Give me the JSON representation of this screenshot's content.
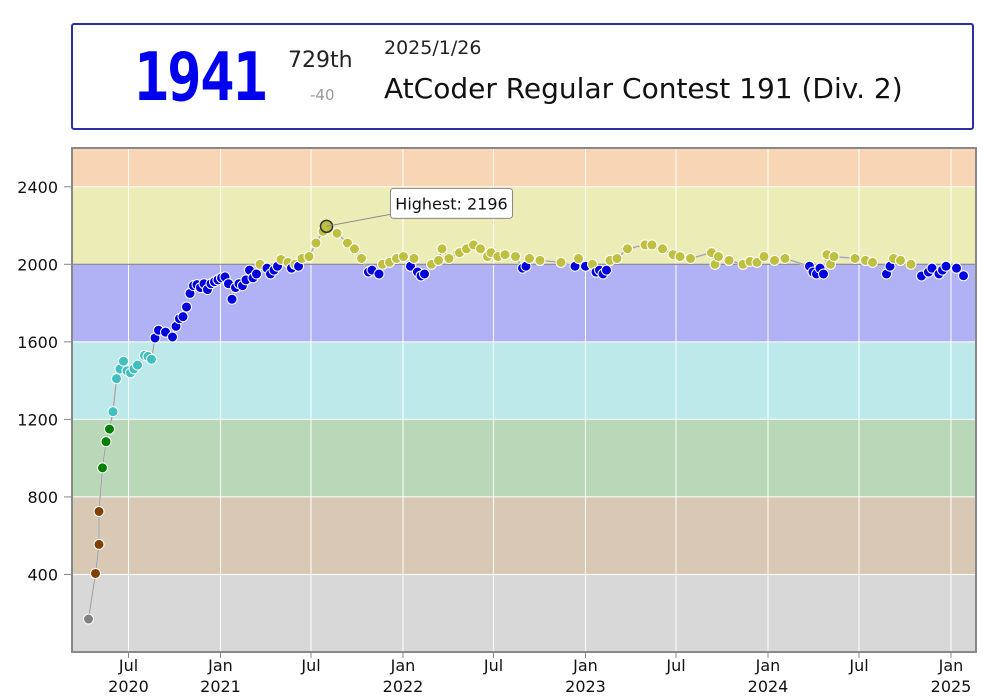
{
  "status": {
    "rating": "1941",
    "place": "729th",
    "delta": "-40",
    "date": "2025/1/26",
    "contest": "AtCoder Regular Contest 191 (Div. 2)"
  },
  "chart_data": {
    "type": "line",
    "ylim": [
      0,
      2600
    ],
    "yticks": [
      "400",
      "800",
      "1200",
      "1600",
      "2000",
      "2400"
    ],
    "xlabels": [
      {
        "date": "2020-07-01",
        "top": "Jul",
        "bottom": "2020"
      },
      {
        "date": "2021-01-01",
        "top": "Jan",
        "bottom": "2021"
      },
      {
        "date": "2021-07-01",
        "top": "Jul",
        "bottom": ""
      },
      {
        "date": "2022-01-01",
        "top": "Jan",
        "bottom": "2022"
      },
      {
        "date": "2022-07-01",
        "top": "Jul",
        "bottom": ""
      },
      {
        "date": "2023-01-01",
        "top": "Jan",
        "bottom": "2023"
      },
      {
        "date": "2023-07-01",
        "top": "Jul",
        "bottom": ""
      },
      {
        "date": "2024-01-01",
        "top": "Jan",
        "bottom": "2024"
      },
      {
        "date": "2024-07-01",
        "top": "Jul",
        "bottom": ""
      },
      {
        "date": "2025-01-01",
        "top": "Jan",
        "bottom": "2025"
      }
    ],
    "xrange": [
      "2020-03-10",
      "2025-02-20"
    ],
    "bands": [
      {
        "min": 0,
        "max": 400,
        "color": "#d8d8d8"
      },
      {
        "min": 400,
        "max": 800,
        "color": "#d8c8b4"
      },
      {
        "min": 800,
        "max": 1200,
        "color": "#b8d8b8"
      },
      {
        "min": 1200,
        "max": 1600,
        "color": "#bde9ea"
      },
      {
        "min": 1600,
        "max": 2000,
        "color": "#b1b1f5"
      },
      {
        "min": 2000,
        "max": 2400,
        "color": "#ececb7"
      },
      {
        "min": 2400,
        "max": 2800,
        "color": "#f8d6b5"
      }
    ],
    "rank_colors": [
      {
        "min": 0,
        "color": "#808080"
      },
      {
        "min": 400,
        "color": "#804000"
      },
      {
        "min": 800,
        "color": "#008000"
      },
      {
        "min": 1200,
        "color": "#3fbfbf"
      },
      {
        "min": 1600,
        "color": "#0000dd"
      },
      {
        "min": 2000,
        "color": "#c0c040"
      },
      {
        "min": 2400,
        "color": "#ff8000"
      }
    ],
    "highest": {
      "label": "Highest: 2196",
      "date": "2021-08-01",
      "value": 2196
    },
    "points": [
      [
        "2020-04-12",
        170
      ],
      [
        "2020-04-26",
        405
      ],
      [
        "2020-05-03",
        555
      ],
      [
        "2020-05-03",
        725
      ],
      [
        "2020-05-10",
        950
      ],
      [
        "2020-05-17",
        1085
      ],
      [
        "2020-05-24",
        1150
      ],
      [
        "2020-05-31",
        1240
      ],
      [
        "2020-06-07",
        1410
      ],
      [
        "2020-06-14",
        1460
      ],
      [
        "2020-06-21",
        1500
      ],
      [
        "2020-06-28",
        1450
      ],
      [
        "2020-07-05",
        1440
      ],
      [
        "2020-07-12",
        1460
      ],
      [
        "2020-07-19",
        1480
      ],
      [
        "2020-08-02",
        1530
      ],
      [
        "2020-08-09",
        1525
      ],
      [
        "2020-08-16",
        1510
      ],
      [
        "2020-08-23",
        1620
      ],
      [
        "2020-08-30",
        1660
      ],
      [
        "2020-09-13",
        1650
      ],
      [
        "2020-09-27",
        1625
      ],
      [
        "2020-10-04",
        1680
      ],
      [
        "2020-10-11",
        1720
      ],
      [
        "2020-10-18",
        1730
      ],
      [
        "2020-10-25",
        1780
      ],
      [
        "2020-11-01",
        1850
      ],
      [
        "2020-11-08",
        1890
      ],
      [
        "2020-11-15",
        1895
      ],
      [
        "2020-11-22",
        1880
      ],
      [
        "2020-11-29",
        1900
      ],
      [
        "2020-12-06",
        1870
      ],
      [
        "2020-12-13",
        1900
      ],
      [
        "2020-12-20",
        1910
      ],
      [
        "2020-12-27",
        1920
      ],
      [
        "2021-01-03",
        1930
      ],
      [
        "2021-01-10",
        1935
      ],
      [
        "2021-01-17",
        1900
      ],
      [
        "2021-01-24",
        1820
      ],
      [
        "2021-01-31",
        1880
      ],
      [
        "2021-02-07",
        1900
      ],
      [
        "2021-02-14",
        1890
      ],
      [
        "2021-02-21",
        1920
      ],
      [
        "2021-02-28",
        1970
      ],
      [
        "2021-03-07",
        1930
      ],
      [
        "2021-03-14",
        1950
      ],
      [
        "2021-03-21",
        2000
      ],
      [
        "2021-04-04",
        1980
      ],
      [
        "2021-04-11",
        1950
      ],
      [
        "2021-04-18",
        1970
      ],
      [
        "2021-04-25",
        1990
      ],
      [
        "2021-05-02",
        2025
      ],
      [
        "2021-05-16",
        2010
      ],
      [
        "2021-05-23",
        1980
      ],
      [
        "2021-05-30",
        2000
      ],
      [
        "2021-06-06",
        1990
      ],
      [
        "2021-06-13",
        2030
      ],
      [
        "2021-06-27",
        2040
      ],
      [
        "2021-07-11",
        2110
      ],
      [
        "2021-07-25",
        2170
      ],
      [
        "2021-08-01",
        2196
      ],
      [
        "2021-08-22",
        2160
      ],
      [
        "2021-09-12",
        2110
      ],
      [
        "2021-09-26",
        2080
      ],
      [
        "2021-10-10",
        2030
      ],
      [
        "2021-10-24",
        1960
      ],
      [
        "2021-10-31",
        1970
      ],
      [
        "2021-11-14",
        1950
      ],
      [
        "2021-11-21",
        2000
      ],
      [
        "2021-12-05",
        2010
      ],
      [
        "2021-12-19",
        2030
      ],
      [
        "2022-01-02",
        2040
      ],
      [
        "2022-01-16",
        1990
      ],
      [
        "2022-01-23",
        2030
      ],
      [
        "2022-01-30",
        1960
      ],
      [
        "2022-02-06",
        1940
      ],
      [
        "2022-02-13",
        1950
      ],
      [
        "2022-02-27",
        2000
      ],
      [
        "2022-03-13",
        2020
      ],
      [
        "2022-03-20",
        2080
      ],
      [
        "2022-04-03",
        2030
      ],
      [
        "2022-04-24",
        2060
      ],
      [
        "2022-05-08",
        2080
      ],
      [
        "2022-05-22",
        2100
      ],
      [
        "2022-06-05",
        2080
      ],
      [
        "2022-06-19",
        2040
      ],
      [
        "2022-06-26",
        2060
      ],
      [
        "2022-07-10",
        2040
      ],
      [
        "2022-07-24",
        2050
      ],
      [
        "2022-08-14",
        2040
      ],
      [
        "2022-08-28",
        1980
      ],
      [
        "2022-09-04",
        1990
      ],
      [
        "2022-09-11",
        2030
      ],
      [
        "2022-10-02",
        2020
      ],
      [
        "2022-11-13",
        2010
      ],
      [
        "2022-12-11",
        1990
      ],
      [
        "2022-12-18",
        2030
      ],
      [
        "2023-01-01",
        1990
      ],
      [
        "2023-01-15",
        2000
      ],
      [
        "2023-01-22",
        1960
      ],
      [
        "2023-01-29",
        1970
      ],
      [
        "2023-02-05",
        1950
      ],
      [
        "2023-02-12",
        1970
      ],
      [
        "2023-02-19",
        2020
      ],
      [
        "2023-03-05",
        2030
      ],
      [
        "2023-03-26",
        2080
      ],
      [
        "2023-04-30",
        2100
      ],
      [
        "2023-05-14",
        2100
      ],
      [
        "2023-06-04",
        2080
      ],
      [
        "2023-06-25",
        2050
      ],
      [
        "2023-07-09",
        2040
      ],
      [
        "2023-07-30",
        2030
      ],
      [
        "2023-09-10",
        2060
      ],
      [
        "2023-09-17",
        2000
      ],
      [
        "2023-09-24",
        2040
      ],
      [
        "2023-10-15",
        2020
      ],
      [
        "2023-11-12",
        2000
      ],
      [
        "2023-11-26",
        2015
      ],
      [
        "2023-12-10",
        2010
      ],
      [
        "2023-12-24",
        2040
      ],
      [
        "2024-01-14",
        2020
      ],
      [
        "2024-02-04",
        2030
      ],
      [
        "2024-03-24",
        1990
      ],
      [
        "2024-03-31",
        1960
      ],
      [
        "2024-04-07",
        1950
      ],
      [
        "2024-04-14",
        1980
      ],
      [
        "2024-04-21",
        1950
      ],
      [
        "2024-04-28",
        2050
      ],
      [
        "2024-05-05",
        2000
      ],
      [
        "2024-05-12",
        2040
      ],
      [
        "2024-06-23",
        2030
      ],
      [
        "2024-07-14",
        2020
      ],
      [
        "2024-07-28",
        2010
      ],
      [
        "2024-08-25",
        1950
      ],
      [
        "2024-09-01",
        1990
      ],
      [
        "2024-09-08",
        2030
      ],
      [
        "2024-09-22",
        2020
      ],
      [
        "2024-10-13",
        2000
      ],
      [
        "2024-11-03",
        1940
      ],
      [
        "2024-11-17",
        1960
      ],
      [
        "2024-11-24",
        1980
      ],
      [
        "2024-12-08",
        1950
      ],
      [
        "2024-12-15",
        1970
      ],
      [
        "2024-12-22",
        1990
      ],
      [
        "2025-01-12",
        1980
      ],
      [
        "2025-01-26",
        1941
      ]
    ]
  }
}
